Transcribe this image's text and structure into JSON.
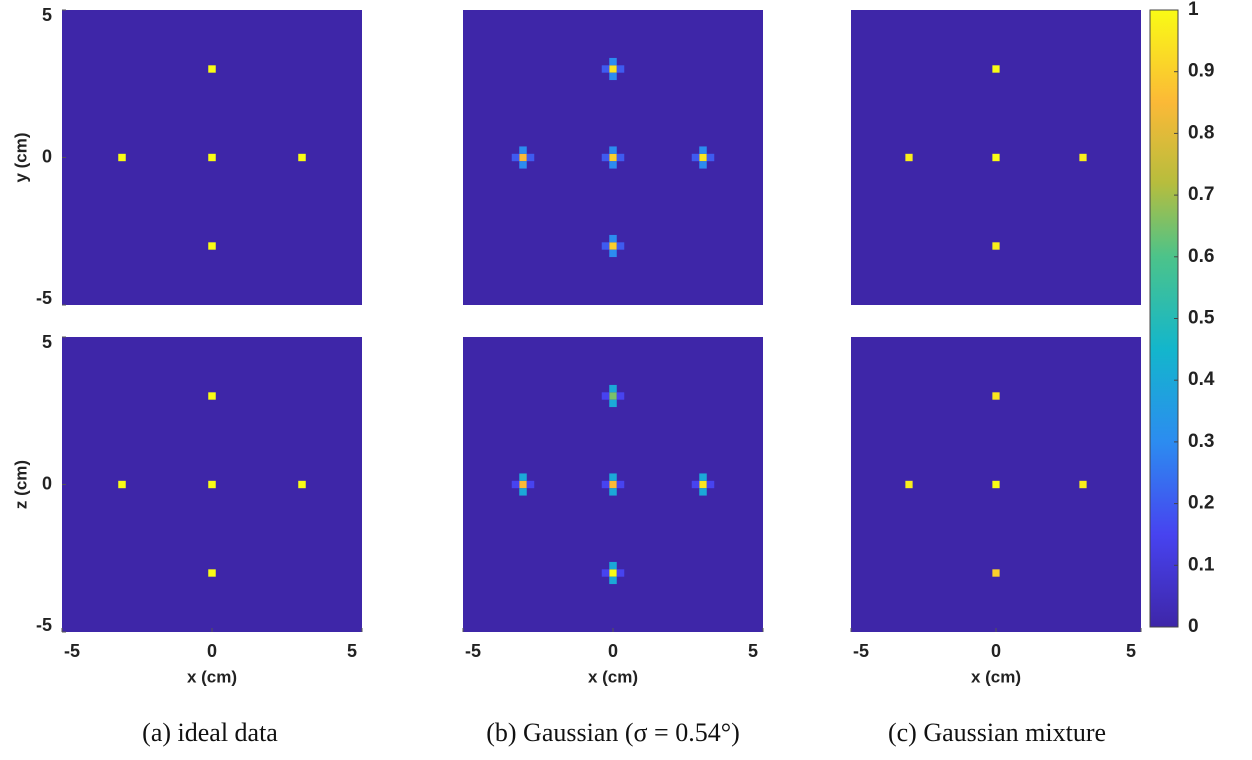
{
  "chart_data": [
    {
      "type": "heatmap",
      "xlim": [
        -5,
        5
      ],
      "ylim": [
        -5,
        5
      ],
      "yticks": [
        -5,
        0,
        5
      ],
      "ylabel": "y (cm)",
      "x": [
        -3,
        0,
        3,
        0,
        0
      ],
      "y": [
        0,
        0,
        0,
        3,
        -3
      ],
      "values": [
        1,
        1,
        1,
        1,
        1
      ]
    },
    {
      "type": "heatmap",
      "xlim": [
        -5,
        5
      ],
      "ylim": [
        -5,
        5
      ],
      "x": [
        -3,
        -3,
        -3,
        -3.25,
        -2.75,
        0,
        0,
        0,
        -0.25,
        0.25,
        3,
        3,
        3,
        2.75,
        3.25,
        0,
        0,
        0,
        -0.25,
        0.25,
        0,
        0,
        0,
        -0.25,
        0.25
      ],
      "y": [
        0,
        0.25,
        -0.25,
        0,
        0,
        0,
        0.25,
        -0.25,
        0,
        0,
        0,
        0.25,
        -0.25,
        0,
        0,
        3,
        3.25,
        2.75,
        3,
        3,
        -3,
        -2.75,
        -3.25,
        -3,
        -3
      ],
      "values": [
        0.85,
        0.3,
        0.3,
        0.2,
        0.2,
        0.9,
        0.3,
        0.3,
        0.2,
        0.2,
        0.95,
        0.3,
        0.3,
        0.2,
        0.2,
        0.95,
        0.3,
        0.3,
        0.2,
        0.2,
        0.9,
        0.3,
        0.3,
        0.2,
        0.2
      ]
    },
    {
      "type": "heatmap",
      "xlim": [
        -5,
        5
      ],
      "ylim": [
        -5,
        5
      ],
      "x": [
        -3,
        0,
        3,
        0,
        0
      ],
      "y": [
        0,
        0,
        0,
        3,
        -3
      ],
      "values": [
        0.97,
        1,
        0.97,
        1,
        0.97
      ]
    },
    {
      "type": "heatmap",
      "xlim": [
        -5,
        5
      ],
      "ylim": [
        -5,
        5
      ],
      "xticks": [
        -5,
        0,
        5
      ],
      "yticks": [
        -5,
        0,
        5
      ],
      "xlabel": "x (cm)",
      "ylabel": "z (cm)",
      "caption": "(a) ideal data",
      "x": [
        -3,
        0,
        3,
        0,
        0
      ],
      "y": [
        0,
        0,
        0,
        3,
        -3
      ],
      "values": [
        1,
        1,
        1,
        1,
        1
      ]
    },
    {
      "type": "heatmap",
      "xlim": [
        -5,
        5
      ],
      "ylim": [
        -5,
        5
      ],
      "xticks": [
        -5,
        0,
        5
      ],
      "xlabel": "x (cm)",
      "caption": "(b) Gaussian (σ = 0.54°)",
      "x": [
        -3,
        -3,
        -3,
        -3.25,
        -2.75,
        0,
        0,
        0,
        -0.25,
        0.25,
        3,
        3,
        3,
        2.75,
        3.25,
        0,
        0,
        0,
        -0.25,
        0.25,
        0,
        0,
        0,
        -0.25,
        0.25
      ],
      "y": [
        0,
        0.25,
        -0.25,
        0,
        0,
        0,
        0.25,
        -0.25,
        0,
        0,
        0,
        0.25,
        -0.25,
        0,
        0,
        3,
        3.25,
        2.75,
        3,
        3,
        -3,
        -2.75,
        -3.25,
        -3,
        -3
      ],
      "values": [
        0.85,
        0.4,
        0.4,
        0.15,
        0.15,
        0.85,
        0.4,
        0.4,
        0.15,
        0.15,
        0.95,
        0.4,
        0.4,
        0.15,
        0.15,
        0.65,
        0.4,
        0.4,
        0.15,
        0.15,
        1,
        0.4,
        0.4,
        0.15,
        0.15
      ]
    },
    {
      "type": "heatmap",
      "xlim": [
        -5,
        5
      ],
      "ylim": [
        -5,
        5
      ],
      "xticks": [
        -5,
        0,
        5
      ],
      "xlabel": "x (cm)",
      "caption": "(c) Gaussian mixture",
      "x": [
        -3,
        0,
        3,
        0,
        0
      ],
      "y": [
        0,
        0,
        0,
        3,
        -3
      ],
      "values": [
        0.97,
        1,
        0.97,
        0.95,
        0.9
      ]
    },
    {
      "type": "colorbar",
      "ylim": [
        0,
        1
      ],
      "yticks": [
        0,
        0.1,
        0.2,
        0.3,
        0.4,
        0.5,
        0.6,
        0.7,
        0.8,
        0.9,
        1
      ]
    }
  ]
}
